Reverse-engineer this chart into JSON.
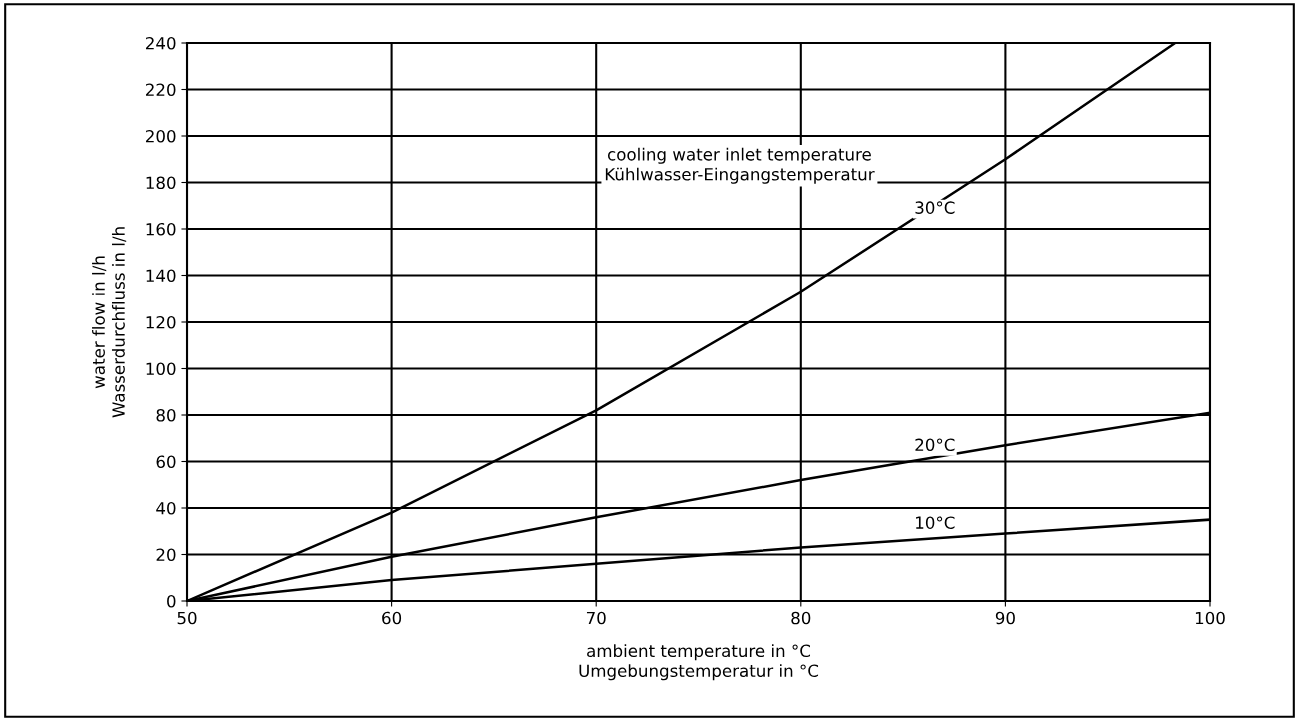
{
  "chart_data": {
    "type": "line",
    "xlabel": "ambient temperature in °C\nUmgebungstemperatur in °C",
    "ylabel": "water flow in l/h\nWasserdurchfluss in l/h",
    "series": [
      {
        "name": "30°C",
        "color": "#000000",
        "x": [
          50,
          60,
          70,
          80,
          90,
          98.3
        ],
        "values": [
          0,
          38,
          82,
          133,
          190,
          240
        ]
      },
      {
        "name": "20°C",
        "color": "#000000",
        "x": [
          50,
          60,
          70,
          80,
          90,
          100
        ],
        "values": [
          0,
          19,
          36,
          52,
          67,
          81
        ]
      },
      {
        "name": "10°C",
        "color": "#000000",
        "x": [
          50,
          60,
          70,
          80,
          90,
          100
        ],
        "values": [
          0,
          9,
          16,
          23,
          29,
          35
        ]
      }
    ],
    "annotations": [
      "cooling water inlet temperature\nKühlwasser-Eingangstemperatur"
    ],
    "xlim": [
      50,
      100
    ],
    "xticks": [
      50,
      60,
      70,
      80,
      90,
      100
    ],
    "ylim": [
      0,
      240
    ],
    "yticks": [
      0,
      20,
      40,
      60,
      80,
      100,
      120,
      140,
      160,
      180,
      200,
      220,
      240
    ],
    "grid": true,
    "marker": "none",
    "line_style": "solid"
  }
}
